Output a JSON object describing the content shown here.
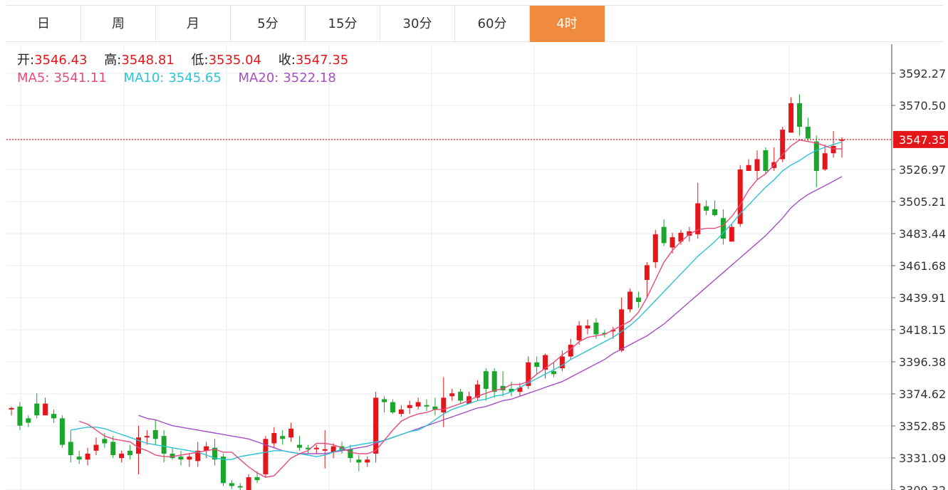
{
  "tabs": [
    "日",
    "周",
    "月",
    "5分",
    "15分",
    "30分",
    "60分",
    "4时"
  ],
  "active_tab_index": 7,
  "info": {
    "open_label": "开:",
    "open": "3546.43",
    "high_label": "高:",
    "high": "3548.81",
    "low_label": "低:",
    "low": "3535.04",
    "close_label": "收:",
    "close": "3547.35"
  },
  "ma": {
    "ma5_label": "MA5:",
    "ma5": "3541.11",
    "ma10_label": "MA10:",
    "ma10": "3545.65",
    "ma20_label": "MA20:",
    "ma20": "3522.18"
  },
  "colors": {
    "up": "#e4161a",
    "down": "#1aa52b",
    "ma5": "#e64b7d",
    "ma10": "#2bc3d5",
    "ma20": "#a54fc3",
    "active_tab": "#f08a3c",
    "grid": "#e6eef3"
  },
  "chart_data": {
    "type": "candlestick",
    "y_ticks": [
      3592.27,
      3570.5,
      3526.97,
      3505.21,
      3483.44,
      3461.68,
      3439.91,
      3418.15,
      3396.38,
      3374.62,
      3352.85,
      3331.09,
      3309.32
    ],
    "last_price": "3547.35",
    "ylim": [
      3305,
      3615
    ],
    "candles": [
      [
        3364,
        3366,
        3360,
        3365
      ],
      [
        3366,
        3369,
        3350,
        3353
      ],
      [
        3358,
        3360,
        3352,
        3355
      ],
      [
        3368,
        3375,
        3358,
        3360
      ],
      [
        3360,
        3372,
        3362,
        3368
      ],
      [
        3361,
        3364,
        3355,
        3358
      ],
      [
        3358,
        3360,
        3338,
        3340
      ],
      [
        3342,
        3350,
        3328,
        3333
      ],
      [
        3332,
        3336,
        3327,
        3330
      ],
      [
        3330,
        3338,
        3326,
        3334
      ],
      [
        3336,
        3345,
        3333,
        3340
      ],
      [
        3344,
        3348,
        3338,
        3341
      ],
      [
        3342,
        3346,
        3331,
        3333
      ],
      [
        3331,
        3336,
        3328,
        3334
      ],
      [
        3336,
        3340,
        3330,
        3333
      ],
      [
        3334,
        3353,
        3320,
        3345
      ],
      [
        3345,
        3350,
        3340,
        3346
      ],
      [
        3350,
        3357,
        3340,
        3344
      ],
      [
        3346,
        3350,
        3328,
        3334
      ],
      [
        3334,
        3338,
        3330,
        3331
      ],
      [
        3332,
        3336,
        3326,
        3330
      ],
      [
        3330,
        3334,
        3325,
        3332
      ],
      [
        3329,
        3342,
        3325,
        3336
      ],
      [
        3336,
        3342,
        3331,
        3339
      ],
      [
        3338,
        3344,
        3326,
        3330
      ],
      [
        3332,
        3334,
        3312,
        3314
      ],
      [
        3314,
        3316,
        3310,
        3312
      ],
      [
        3312,
        3314,
        3308,
        3311
      ],
      [
        3307,
        3320,
        3305,
        3318
      ],
      [
        3318,
        3322,
        3314,
        3316
      ],
      [
        3320,
        3346,
        3318,
        3344
      ],
      [
        3341,
        3352,
        3338,
        3348
      ],
      [
        3346,
        3350,
        3340,
        3344
      ],
      [
        3345,
        3355,
        3342,
        3351
      ],
      [
        3340,
        3346,
        3336,
        3338
      ],
      [
        3338,
        3340,
        3334,
        3337
      ],
      [
        3337,
        3340,
        3334,
        3338
      ],
      [
        3336,
        3350,
        3324,
        3337
      ],
      [
        3335,
        3341,
        3331,
        3339
      ],
      [
        3339,
        3342,
        3334,
        3336
      ],
      [
        3337,
        3340,
        3328,
        3331
      ],
      [
        3330,
        3333,
        3322,
        3328
      ],
      [
        3328,
        3332,
        3325,
        3330
      ],
      [
        3334,
        3376,
        3328,
        3372
      ],
      [
        3371,
        3373,
        3362,
        3369
      ],
      [
        3369,
        3371,
        3361,
        3362
      ],
      [
        3361,
        3367,
        3359,
        3364
      ],
      [
        3365,
        3370,
        3361,
        3367
      ],
      [
        3366,
        3372,
        3364,
        3369
      ],
      [
        3367,
        3371,
        3363,
        3366
      ],
      [
        3366,
        3372,
        3360,
        3364
      ],
      [
        3362,
        3386,
        3352,
        3372
      ],
      [
        3373,
        3378,
        3370,
        3375
      ],
      [
        3376,
        3378,
        3368,
        3370
      ],
      [
        3368,
        3376,
        3368,
        3373
      ],
      [
        3372,
        3384,
        3370,
        3381
      ],
      [
        3390,
        3392,
        3370,
        3378
      ],
      [
        3390,
        3392,
        3372,
        3376
      ],
      [
        3380,
        3390,
        3373,
        3377
      ],
      [
        3378,
        3383,
        3373,
        3376
      ],
      [
        3376,
        3382,
        3373,
        3379
      ],
      [
        3380,
        3400,
        3378,
        3396
      ],
      [
        3396,
        3400,
        3388,
        3393
      ],
      [
        3391,
        3402,
        3385,
        3401
      ],
      [
        3390,
        3396,
        3386,
        3388
      ],
      [
        3392,
        3404,
        3390,
        3400
      ],
      [
        3400,
        3412,
        3398,
        3408
      ],
      [
        3411,
        3424,
        3408,
        3421
      ],
      [
        3419,
        3425,
        3415,
        3421
      ],
      [
        3423,
        3426,
        3412,
        3415
      ],
      [
        3416,
        3418,
        3413,
        3415
      ],
      [
        3417,
        3420,
        3412,
        3418
      ],
      [
        3404,
        3440,
        3403,
        3432
      ],
      [
        3432,
        3446,
        3430,
        3444
      ],
      [
        3440,
        3444,
        3433,
        3437
      ],
      [
        3452,
        3464,
        3440,
        3462
      ],
      [
        3464,
        3486,
        3460,
        3483
      ],
      [
        3488,
        3493,
        3475,
        3477
      ],
      [
        3474,
        3484,
        3470,
        3481
      ],
      [
        3478,
        3486,
        3476,
        3484
      ],
      [
        3482,
        3488,
        3478,
        3485
      ],
      [
        3483,
        3518,
        3480,
        3504
      ],
      [
        3502,
        3506,
        3496,
        3499
      ],
      [
        3500,
        3506,
        3495,
        3496
      ],
      [
        3494,
        3500,
        3476,
        3480
      ],
      [
        3478,
        3490,
        3478,
        3488
      ],
      [
        3490,
        3530,
        3488,
        3527
      ],
      [
        3526,
        3534,
        3526,
        3530
      ],
      [
        3526,
        3540,
        3520,
        3534
      ],
      [
        3540,
        3542,
        3524,
        3526
      ],
      [
        3528,
        3542,
        3526,
        3532
      ],
      [
        3534,
        3556,
        3532,
        3554
      ],
      [
        3552,
        3576,
        3552,
        3572
      ],
      [
        3572,
        3578,
        3550,
        3556
      ],
      [
        3556,
        3562,
        3546,
        3548
      ],
      [
        3546,
        3550,
        3515,
        3526
      ],
      [
        3527,
        3544,
        3526,
        3538
      ],
      [
        3538,
        3553,
        3535,
        3543
      ],
      [
        3546.43,
        3548.81,
        3535.04,
        3547.35
      ]
    ],
    "ma5": [
      3356,
      3354,
      3350,
      3346,
      3344,
      3343,
      3342,
      3338,
      3336,
      3333,
      3332,
      3332,
      3333,
      3334,
      3335,
      3336,
      3337,
      3335,
      3335,
      3330,
      3325,
      3321,
      3318,
      3319,
      3325,
      3331,
      3334,
      3336,
      3341,
      3341,
      3340,
      3338,
      3335,
      3334,
      3334,
      3336,
      3343,
      3350,
      3356,
      3359,
      3361,
      3362,
      3364,
      3364,
      3366,
      3368,
      3370,
      3373,
      3375,
      3377,
      3378,
      3381,
      3381,
      3383,
      3388,
      3392,
      3396,
      3401,
      3405,
      3410,
      3413,
      3414,
      3415,
      3418,
      3421,
      3424,
      3430,
      3440,
      3452,
      3464,
      3472,
      3478,
      3483,
      3486,
      3487,
      3487,
      3489,
      3495,
      3503,
      3513,
      3520,
      3524,
      3530,
      3537,
      3543,
      3547,
      3546,
      3545,
      3543,
      3541,
      3541
    ],
    "ma10": [
      3350,
      3351,
      3352,
      3352,
      3351,
      3349,
      3347,
      3345,
      3343,
      3341,
      3340,
      3339,
      3338,
      3337,
      3336,
      3335,
      3333,
      3331,
      3330,
      3330,
      3332,
      3333,
      3334,
      3335,
      3336,
      3336,
      3335,
      3334,
      3333,
      3332,
      3333,
      3335,
      3337,
      3339,
      3340,
      3341,
      3342,
      3343,
      3345,
      3347,
      3349,
      3350,
      3353,
      3357,
      3361,
      3364,
      3366,
      3368,
      3370,
      3371,
      3373,
      3374,
      3376,
      3379,
      3382,
      3385,
      3388,
      3391,
      3394,
      3398,
      3401,
      3404,
      3407,
      3410,
      3413,
      3417,
      3421,
      3426,
      3432,
      3438,
      3444,
      3450,
      3456,
      3462,
      3468,
      3473,
      3478,
      3484,
      3490,
      3497,
      3503,
      3509,
      3515,
      3520,
      3526,
      3530,
      3533,
      3537,
      3540,
      3542,
      3544,
      3545.65
    ],
    "ma20": [
      3360,
      3358,
      3357,
      3355,
      3353,
      3352,
      3351,
      3350,
      3349,
      3348,
      3347,
      3346,
      3345,
      3344,
      3342,
      3340,
      3338,
      3336,
      3335,
      3334,
      3334,
      3334,
      3334,
      3335,
      3336,
      3337,
      3338,
      3339,
      3341,
      3343,
      3345,
      3347,
      3349,
      3351,
      3353,
      3355,
      3357,
      3359,
      3361,
      3363,
      3365,
      3366,
      3368,
      3370,
      3371,
      3373,
      3375,
      3377,
      3379,
      3381,
      3383,
      3386,
      3389,
      3392,
      3395,
      3398,
      3402,
      3405,
      3408,
      3411,
      3414,
      3418,
      3422,
      3427,
      3432,
      3437,
      3442,
      3447,
      3452,
      3457,
      3462,
      3467,
      3472,
      3477,
      3482,
      3488,
      3494,
      3501,
      3506,
      3510,
      3513,
      3516,
      3519,
      3522.18
    ]
  }
}
